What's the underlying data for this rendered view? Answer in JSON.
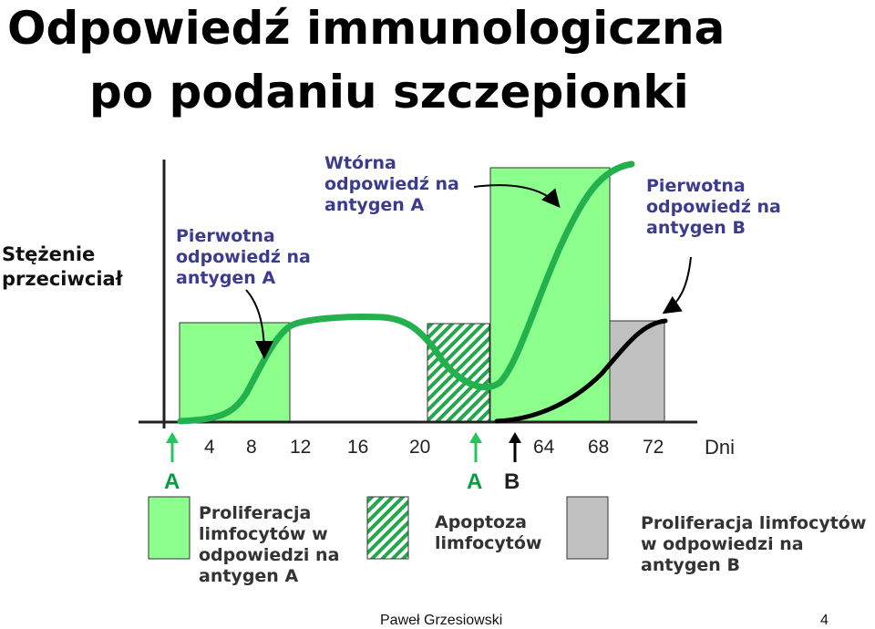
{
  "title_line1": "Odpowiedź immunologiczna",
  "title_line2": "po podaniu szczepionki",
  "ylabel_line1": "Stężenie",
  "ylabel_line2": "przeciwciał",
  "annotations": {
    "primary_a": [
      "Pierwotna",
      "odpowiedź na",
      "antygen A"
    ],
    "secondary_a": [
      "Wtórna",
      "odpowiedź na",
      "antygen A"
    ],
    "primary_b": [
      "Pierwotna",
      "odpowiedź na",
      "antygen B"
    ]
  },
  "ticks": [
    "4",
    "8",
    "12",
    "16",
    "20",
    "64",
    "68",
    "72"
  ],
  "xunit": "Dni",
  "markers": {
    "first": "A",
    "second": "A",
    "third": "B"
  },
  "legend": {
    "prolif_a": [
      "Proliferacja",
      "limfocytów w",
      "odpowiedzi na",
      "antygen A"
    ],
    "apoptosis": [
      "Apoptoza",
      "limfocytów"
    ],
    "prolif_b": [
      "Proliferacja limfocytów",
      "w odpowiedzi na",
      "antygen B"
    ]
  },
  "footer": {
    "author": "Paweł Grzesiowski",
    "page": "4"
  },
  "colors": {
    "green_fill": "#8cff8c",
    "green_line": "#22b14c",
    "gray_fill": "#c0c0c0",
    "arrow_green": "#22c55e"
  }
}
